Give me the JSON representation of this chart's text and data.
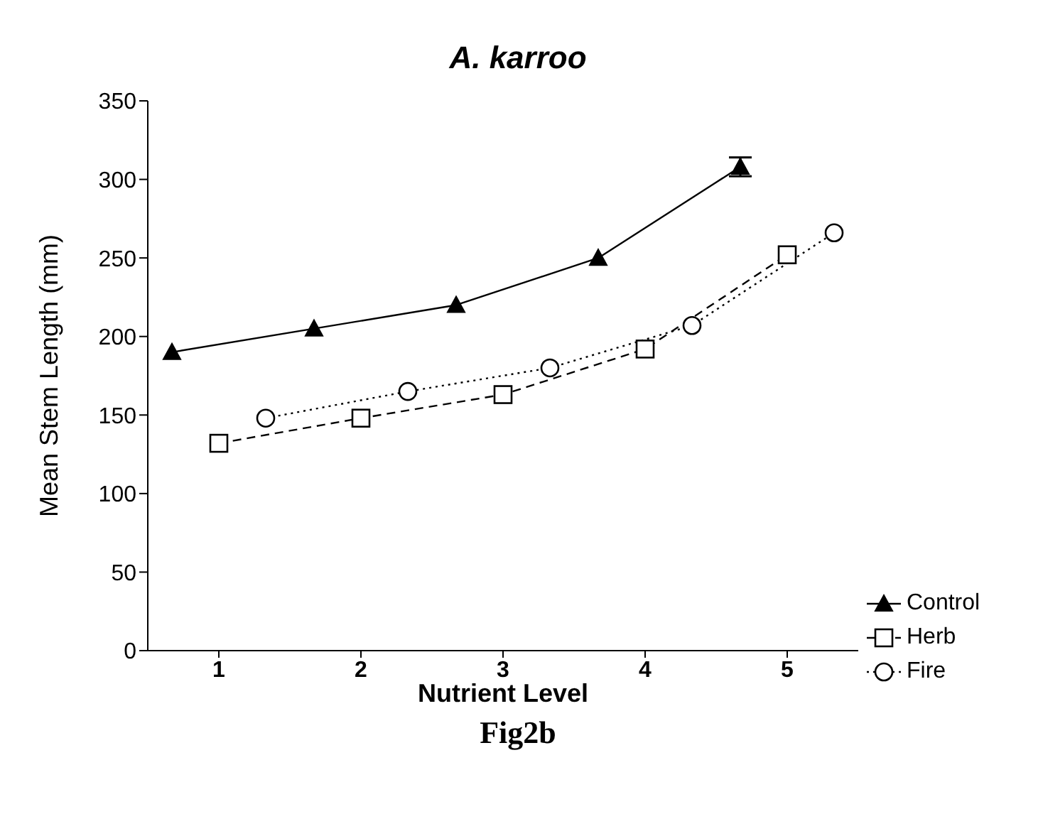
{
  "chart_data": {
    "type": "line",
    "title": "A. karroo",
    "xlabel": "Nutrient Level",
    "ylabel": "Mean Stem Length (mm)",
    "annotations": [
      "Fig2b"
    ],
    "xlim": [
      0.5,
      5.5
    ],
    "xticks": [
      1,
      2,
      3,
      4,
      5
    ],
    "ylim": [
      0,
      350
    ],
    "yticks": [
      0,
      50,
      100,
      150,
      200,
      250,
      300,
      350
    ],
    "legend": "bottom right",
    "series": [
      {
        "name": "Control",
        "color": "#000000",
        "marker": "triangle",
        "line_style": "solid",
        "x": [
          0.67,
          1.67,
          2.67,
          3.67,
          4.67
        ],
        "values": [
          190,
          205,
          220,
          250,
          308
        ],
        "errors": [
          null,
          null,
          null,
          null,
          6
        ]
      },
      {
        "name": "Herb",
        "color": "#000000",
        "marker": "square",
        "line_style": "dashed",
        "x": [
          1,
          2,
          3,
          4,
          5
        ],
        "values": [
          132,
          148,
          163,
          192,
          252
        ]
      },
      {
        "name": "Fire",
        "color": "#000000",
        "marker": "circle",
        "line_style": "dotted",
        "x": [
          1.33,
          2.33,
          3.33,
          4.33,
          5.33
        ],
        "values": [
          148,
          165,
          180,
          207,
          266
        ]
      }
    ]
  }
}
